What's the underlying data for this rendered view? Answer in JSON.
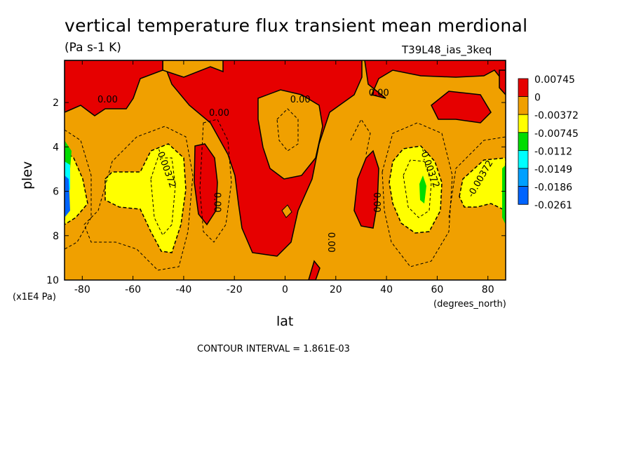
{
  "chart_data": {
    "type": "heatmap",
    "title": "vertical temperature flux transient mean merdional",
    "subtitle": "(Pa s-1 K)",
    "run_id": "T39L48_ias_3keq",
    "xlabel": "lat",
    "x_unit": "(degrees_north)",
    "ylabel": "plev",
    "y_unit": "(x1E4 Pa)",
    "contour_interval": "CONTOUR INTERVAL = 1.861E-03",
    "xlim": [
      -87,
      87
    ],
    "ylim": [
      10,
      0.1
    ],
    "x_ticks": [
      "-80",
      "-60",
      "-40",
      "-20",
      "0",
      "20",
      "40",
      "60",
      "80"
    ],
    "x_tick_values": [
      -80,
      -60,
      -40,
      -20,
      0,
      20,
      40,
      60,
      80
    ],
    "y_ticks": [
      "2",
      "4",
      "6",
      "8",
      "10"
    ],
    "y_tick_values": [
      2,
      4,
      6,
      8,
      10
    ],
    "legend": {
      "placement": "right",
      "levels": [
        {
          "label": "0.00745",
          "color": "#e60000"
        },
        {
          "label": "0",
          "color": "#f0a000"
        },
        {
          "label": "-0.00372",
          "color": "#ffff00"
        },
        {
          "label": "-0.00745",
          "color": "#00dc00"
        },
        {
          "label": "-0.0112",
          "color": "#00ffff"
        },
        {
          "label": "-0.0149",
          "color": "#00a0ff"
        },
        {
          "label": "-0.0186",
          "color": "#0064ff"
        },
        {
          "label": "-0.0261",
          "color": ""
        }
      ]
    },
    "contour_labels": [
      {
        "text": "0.00",
        "lat": -70,
        "plev": 2.0
      },
      {
        "text": "0.00",
        "lat": 6,
        "plev": 2.0
      },
      {
        "text": "0.00",
        "lat": 37,
        "plev": 1.7
      },
      {
        "text": "0.00",
        "lat": -26,
        "plev": 2.6
      },
      {
        "text": "0.00",
        "lat": -28,
        "plev": 6.5
      },
      {
        "text": "0.00",
        "lat": 35,
        "plev": 6.5
      },
      {
        "text": "0.00",
        "lat": 17,
        "plev": 8.3
      },
      {
        "text": "-0.00372",
        "lat": -48,
        "plev": 5.0
      },
      {
        "text": "-0.00372",
        "lat": 56,
        "plev": 5.0
      },
      {
        "text": "-0.00372",
        "lat": 78,
        "plev": 5.5
      }
    ]
  }
}
